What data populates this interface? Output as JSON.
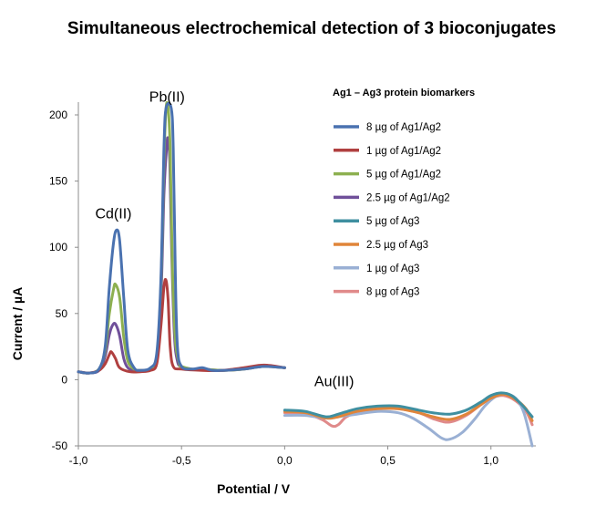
{
  "chart_data": {
    "type": "line",
    "title": "Simultaneous electrochemical detection of 3 bioconjugates",
    "xlabel": "Potential / V",
    "ylabel": "Current / µA",
    "xlim": [
      -1.0,
      1.2
    ],
    "ylim": [
      -50,
      210
    ],
    "x_ticks": [
      {
        "value": -1.0,
        "label": "-1,0"
      },
      {
        "value": -0.5,
        "label": "-0,5"
      },
      {
        "value": 0.0,
        "label": "0,0"
      },
      {
        "value": 0.5,
        "label": "0,5"
      },
      {
        "value": 1.0,
        "label": "1,0"
      }
    ],
    "y_ticks": [
      {
        "value": -50,
        "label": "-50"
      },
      {
        "value": 0,
        "label": "0"
      },
      {
        "value": 50,
        "label": "50"
      },
      {
        "value": 100,
        "label": "100"
      },
      {
        "value": 150,
        "label": "150"
      },
      {
        "value": 200,
        "label": "200"
      }
    ],
    "grid": false,
    "legend": {
      "title": "Ag1 – Ag3 protein biomarkers",
      "position": "right"
    },
    "annotations": [
      {
        "text": "Pb(II)",
        "x": -0.57,
        "y": 210
      },
      {
        "text": "Cd(II)",
        "x": -0.83,
        "y": 122
      },
      {
        "text": "Au(III)",
        "x": 0.24,
        "y": -5
      }
    ],
    "series": [
      {
        "name": "8 µg of Ag1/Ag2",
        "color": "#4a72b0",
        "segment": "left",
        "points": [
          [
            -1.0,
            6
          ],
          [
            -0.95,
            5
          ],
          [
            -0.9,
            8
          ],
          [
            -0.87,
            25
          ],
          [
            -0.85,
            70
          ],
          [
            -0.83,
            103
          ],
          [
            -0.815,
            113
          ],
          [
            -0.8,
            105
          ],
          [
            -0.78,
            62
          ],
          [
            -0.76,
            22
          ],
          [
            -0.73,
            9
          ],
          [
            -0.7,
            7
          ],
          [
            -0.65,
            9
          ],
          [
            -0.62,
            20
          ],
          [
            -0.6,
            75
          ],
          [
            -0.585,
            175
          ],
          [
            -0.575,
            205
          ],
          [
            -0.55,
            205
          ],
          [
            -0.54,
            175
          ],
          [
            -0.53,
            80
          ],
          [
            -0.52,
            25
          ],
          [
            -0.5,
            10
          ],
          [
            -0.45,
            8
          ],
          [
            -0.4,
            9
          ],
          [
            -0.35,
            7
          ],
          [
            -0.3,
            7
          ],
          [
            -0.2,
            8
          ],
          [
            -0.1,
            10
          ],
          [
            0.0,
            9
          ]
        ]
      },
      {
        "name": "1 µg of Ag1/Ag2",
        "color": "#b04040",
        "segment": "left",
        "points": [
          [
            -1.0,
            6
          ],
          [
            -0.95,
            5
          ],
          [
            -0.9,
            7
          ],
          [
            -0.87,
            12
          ],
          [
            -0.85,
            19
          ],
          [
            -0.84,
            21
          ],
          [
            -0.82,
            16
          ],
          [
            -0.8,
            9
          ],
          [
            -0.75,
            6
          ],
          [
            -0.7,
            6
          ],
          [
            -0.65,
            7
          ],
          [
            -0.62,
            12
          ],
          [
            -0.6,
            40
          ],
          [
            -0.585,
            70
          ],
          [
            -0.575,
            75
          ],
          [
            -0.565,
            60
          ],
          [
            -0.555,
            25
          ],
          [
            -0.54,
            10
          ],
          [
            -0.5,
            8
          ],
          [
            -0.4,
            7
          ],
          [
            -0.3,
            7
          ],
          [
            -0.2,
            9
          ],
          [
            -0.1,
            11
          ],
          [
            0.0,
            9
          ]
        ]
      },
      {
        "name": "5 µg of Ag1/Ag2",
        "color": "#8db050",
        "segment": "left",
        "points": [
          [
            -1.0,
            6
          ],
          [
            -0.95,
            5
          ],
          [
            -0.9,
            8
          ],
          [
            -0.87,
            22
          ],
          [
            -0.85,
            50
          ],
          [
            -0.83,
            68
          ],
          [
            -0.82,
            72
          ],
          [
            -0.8,
            62
          ],
          [
            -0.78,
            32
          ],
          [
            -0.76,
            14
          ],
          [
            -0.73,
            8
          ],
          [
            -0.7,
            7
          ],
          [
            -0.65,
            8
          ],
          [
            -0.62,
            18
          ],
          [
            -0.6,
            70
          ],
          [
            -0.585,
            165
          ],
          [
            -0.575,
            205
          ],
          [
            -0.565,
            205
          ],
          [
            -0.555,
            175
          ],
          [
            -0.545,
            90
          ],
          [
            -0.53,
            30
          ],
          [
            -0.51,
            12
          ],
          [
            -0.5,
            10
          ],
          [
            -0.45,
            8
          ],
          [
            -0.4,
            8
          ],
          [
            -0.3,
            7
          ],
          [
            -0.2,
            8
          ],
          [
            -0.1,
            10
          ],
          [
            0.0,
            9
          ]
        ]
      },
      {
        "name": "2.5 µg of Ag1/Ag2",
        "color": "#70509a",
        "segment": "left",
        "points": [
          [
            -1.0,
            6
          ],
          [
            -0.95,
            5
          ],
          [
            -0.9,
            7
          ],
          [
            -0.87,
            18
          ],
          [
            -0.85,
            34
          ],
          [
            -0.835,
            41
          ],
          [
            -0.82,
            42
          ],
          [
            -0.8,
            33
          ],
          [
            -0.78,
            16
          ],
          [
            -0.76,
            9
          ],
          [
            -0.73,
            7
          ],
          [
            -0.7,
            7
          ],
          [
            -0.65,
            8
          ],
          [
            -0.62,
            16
          ],
          [
            -0.6,
            60
          ],
          [
            -0.585,
            140
          ],
          [
            -0.572,
            176
          ],
          [
            -0.565,
            182
          ],
          [
            -0.557,
            165
          ],
          [
            -0.548,
            100
          ],
          [
            -0.535,
            35
          ],
          [
            -0.52,
            14
          ],
          [
            -0.5,
            10
          ],
          [
            -0.45,
            8
          ],
          [
            -0.4,
            8
          ],
          [
            -0.3,
            7
          ],
          [
            -0.2,
            8
          ],
          [
            -0.1,
            10
          ],
          [
            0.0,
            9
          ]
        ]
      },
      {
        "name": "5 µg of Ag3",
        "color": "#3f8fa0",
        "segment": "right",
        "points": [
          [
            0.0,
            -23
          ],
          [
            0.1,
            -24
          ],
          [
            0.2,
            -28
          ],
          [
            0.26,
            -26
          ],
          [
            0.35,
            -22
          ],
          [
            0.45,
            -20
          ],
          [
            0.55,
            -20
          ],
          [
            0.65,
            -23
          ],
          [
            0.72,
            -25
          ],
          [
            0.8,
            -26
          ],
          [
            0.88,
            -23
          ],
          [
            0.95,
            -17
          ],
          [
            1.0,
            -12
          ],
          [
            1.05,
            -10
          ],
          [
            1.1,
            -12
          ],
          [
            1.15,
            -19
          ],
          [
            1.2,
            -28
          ]
        ]
      },
      {
        "name": "2.5 µg of Ag3",
        "color": "#e0853a",
        "segment": "right",
        "points": [
          [
            0.0,
            -24
          ],
          [
            0.1,
            -25
          ],
          [
            0.2,
            -29
          ],
          [
            0.26,
            -28
          ],
          [
            0.35,
            -24
          ],
          [
            0.45,
            -22
          ],
          [
            0.55,
            -22
          ],
          [
            0.65,
            -25
          ],
          [
            0.72,
            -28
          ],
          [
            0.8,
            -30
          ],
          [
            0.88,
            -26
          ],
          [
            0.95,
            -19
          ],
          [
            1.0,
            -14
          ],
          [
            1.06,
            -11
          ],
          [
            1.12,
            -15
          ],
          [
            1.17,
            -22
          ],
          [
            1.2,
            -31
          ]
        ]
      },
      {
        "name": "1 µg of Ag3",
        "color": "#9ab0d4",
        "segment": "right",
        "points": [
          [
            0.0,
            -27
          ],
          [
            0.1,
            -27
          ],
          [
            0.2,
            -29
          ],
          [
            0.26,
            -28
          ],
          [
            0.35,
            -26
          ],
          [
            0.45,
            -24
          ],
          [
            0.55,
            -25
          ],
          [
            0.62,
            -29
          ],
          [
            0.7,
            -37
          ],
          [
            0.76,
            -44
          ],
          [
            0.8,
            -45
          ],
          [
            0.86,
            -40
          ],
          [
            0.92,
            -30
          ],
          [
            0.97,
            -20
          ],
          [
            1.02,
            -13
          ],
          [
            1.07,
            -11
          ],
          [
            1.12,
            -14
          ],
          [
            1.16,
            -25
          ],
          [
            1.2,
            -50
          ]
        ]
      },
      {
        "name": "8 µg of Ag3",
        "color": "#e08a8a",
        "segment": "right",
        "points": [
          [
            0.0,
            -25
          ],
          [
            0.1,
            -26
          ],
          [
            0.18,
            -30
          ],
          [
            0.23,
            -35
          ],
          [
            0.26,
            -34
          ],
          [
            0.3,
            -28
          ],
          [
            0.37,
            -24
          ],
          [
            0.45,
            -22
          ],
          [
            0.55,
            -22
          ],
          [
            0.65,
            -25
          ],
          [
            0.73,
            -30
          ],
          [
            0.8,
            -32
          ],
          [
            0.88,
            -27
          ],
          [
            0.95,
            -19
          ],
          [
            1.0,
            -14
          ],
          [
            1.06,
            -12
          ],
          [
            1.12,
            -16
          ],
          [
            1.17,
            -24
          ],
          [
            1.2,
            -34
          ]
        ]
      }
    ]
  }
}
